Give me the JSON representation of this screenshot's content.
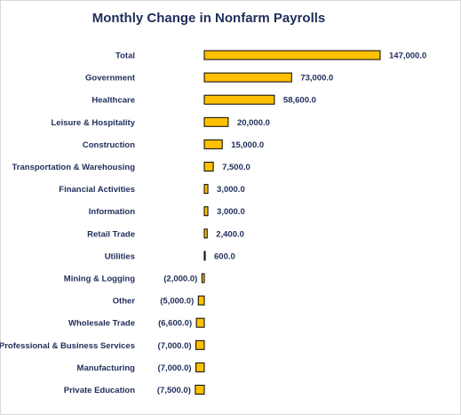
{
  "chart_data": {
    "type": "bar",
    "orientation": "horizontal",
    "title": "Monthly Change in Nonfarm Payrolls",
    "categories": [
      "Total",
      "Government",
      "Healthcare",
      "Leisure & Hospitality",
      "Construction",
      "Transportation & Warehousing",
      "Financial Activities",
      "Information",
      "Retail Trade",
      "Utilities",
      "Mining & Logging",
      "Other",
      "Wholesale Trade",
      "Professional & Business Services",
      "Manufacturing",
      "Private Education"
    ],
    "values": [
      147000,
      73000,
      58600,
      20000,
      15000,
      7500,
      3000,
      3000,
      2400,
      600,
      -2000,
      -5000,
      -6600,
      -7000,
      -7000,
      -7500
    ],
    "value_labels": [
      "147,000.0",
      "73,000.0",
      "58,600.0",
      "20,000.0",
      "15,000.0",
      "7,500.0",
      "3,000.0",
      "3,000.0",
      "2,400.0",
      "600.0",
      "(2,000.0)",
      "(5,000.0)",
      "(6,600.0)",
      "(7,000.0)",
      "(7,000.0)",
      "(7,500.0)"
    ],
    "xlim": [
      -7500,
      147000
    ],
    "grid": false,
    "legend": "none",
    "bar_color": "#ffc000",
    "bar_edge_color": "#000000",
    "text_color": "#1f2d5a"
  }
}
